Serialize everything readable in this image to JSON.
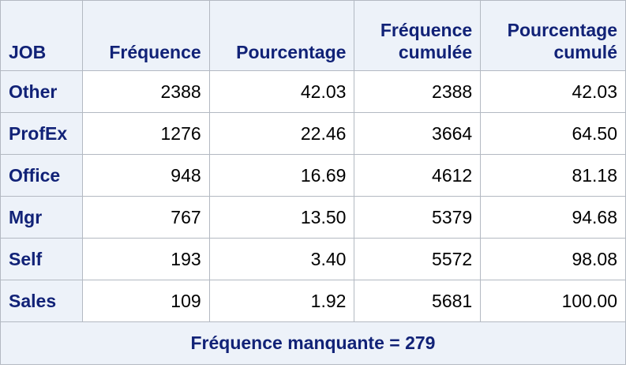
{
  "table": {
    "headers": {
      "job": "JOB",
      "frequence": "Fréquence",
      "pourcentage": "Pourcentage",
      "freq_cumulee_line1": "Fréquence",
      "freq_cumulee_line2": "cumulée",
      "pct_cumule_line1": "Pourcentage",
      "pct_cumule_line2": "cumulé"
    },
    "rows": [
      {
        "job": "Other",
        "freq": "2388",
        "pct": "42.03",
        "cumfreq": "2388",
        "cumpct": "42.03"
      },
      {
        "job": "ProfEx",
        "freq": "1276",
        "pct": "22.46",
        "cumfreq": "3664",
        "cumpct": "64.50"
      },
      {
        "job": "Office",
        "freq": "948",
        "pct": "16.69",
        "cumfreq": "4612",
        "cumpct": "81.18"
      },
      {
        "job": "Mgr",
        "freq": "767",
        "pct": "13.50",
        "cumfreq": "5379",
        "cumpct": "94.68"
      },
      {
        "job": "Self",
        "freq": "193",
        "pct": "3.40",
        "cumfreq": "5572",
        "cumpct": "98.08"
      },
      {
        "job": "Sales",
        "freq": "109",
        "pct": "1.92",
        "cumfreq": "5681",
        "cumpct": "100.00"
      }
    ],
    "footer": "Fréquence manquante = 279"
  }
}
